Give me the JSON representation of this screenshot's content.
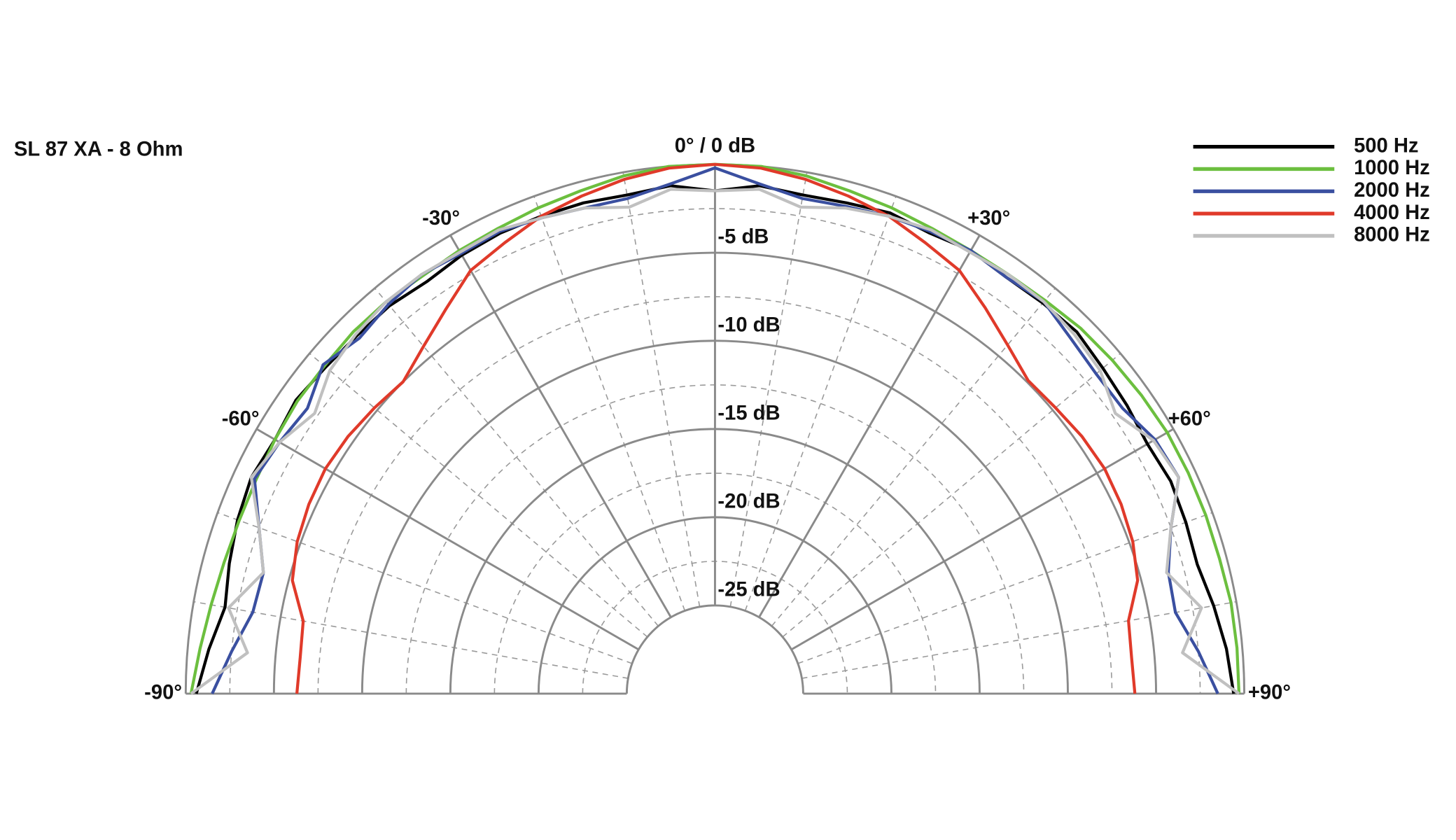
{
  "chart_data": {
    "type": "polar",
    "title": "SL 87 XA - 8 Ohm",
    "theta": [
      -90,
      -85,
      -80,
      -75,
      -70,
      -65,
      -60,
      -55,
      -50,
      -45,
      -40,
      -35,
      -30,
      -25,
      -20,
      -15,
      -10,
      -5,
      0,
      5,
      10,
      15,
      20,
      25,
      30,
      35,
      40,
      45,
      50,
      55,
      60,
      65,
      70,
      75,
      80,
      85,
      90
    ],
    "thetalim": [
      -90,
      90
    ],
    "thetaticks": [
      {
        "value": -90,
        "label": "-90°"
      },
      {
        "value": -60,
        "label": "-60°"
      },
      {
        "value": -30,
        "label": "-30°"
      },
      {
        "value": 0,
        "label": "0° / 0 dB"
      },
      {
        "value": 30,
        "label": "+30°"
      },
      {
        "value": 60,
        "label": "+60°"
      },
      {
        "value": 90,
        "label": "+90°"
      }
    ],
    "thetaminor": [
      -80,
      -70,
      -50,
      -40,
      -20,
      -10,
      10,
      20,
      40,
      50,
      70,
      80
    ],
    "rlim": [
      -30,
      0
    ],
    "rticks": [
      {
        "value": -5,
        "label": "-5 dB"
      },
      {
        "value": -10,
        "label": "-10 dB"
      },
      {
        "value": -15,
        "label": "-15 dB"
      },
      {
        "value": -20,
        "label": "-20 dB"
      },
      {
        "value": -25,
        "label": "-25 dB"
      }
    ],
    "rminor": [
      -2.5,
      -7.5,
      -12.5,
      -17.5,
      -22.5
    ],
    "legend": "top-right",
    "series": [
      {
        "name": "500 Hz",
        "color": "#000000",
        "values": [
          -0.6,
          -1.2,
          -1.8,
          -1.5,
          -1.2,
          -1.0,
          -1.2,
          -1.0,
          -1.2,
          -1.3,
          -1.3,
          -1.5,
          -1.3,
          -1.2,
          -1.2,
          -1.2,
          -1.3,
          -1.1,
          -1.5,
          -1.1,
          -1.3,
          -1.2,
          -1.0,
          -1.2,
          -1.0,
          -1.2,
          -1.1,
          -1.0,
          -1.3,
          -1.5,
          -1.7,
          -1.5,
          -1.6,
          -1.7,
          -1.3,
          -0.9,
          -0.6
        ]
      },
      {
        "name": "1000 Hz",
        "color": "#6cbf3f",
        "values": [
          -0.3,
          -0.7,
          -1.0,
          -1.2,
          -1.3,
          -1.3,
          -1.2,
          -1.1,
          -1.1,
          -1.0,
          -1.0,
          -1.1,
          -1.0,
          -0.9,
          -0.7,
          -0.5,
          -0.2,
          0,
          0,
          0,
          -0.2,
          -0.5,
          -0.7,
          -0.9,
          -1.0,
          -1.0,
          -0.9,
          -0.7,
          -0.6,
          -0.5,
          -0.4,
          -0.4,
          -0.4,
          -0.4,
          -0.3,
          -0.3,
          -0.3
        ]
      },
      {
        "name": "2000 Hz",
        "color": "#3a4fa0",
        "values": [
          -1.5,
          -2.5,
          -3.4,
          -3.5,
          -2.5,
          -1.2,
          -1.5,
          -1.8,
          -1.0,
          -1.5,
          -1.2,
          -1.0,
          -1.2,
          -1.1,
          -1.3,
          -1.5,
          -1.5,
          -1.0,
          -0.2,
          -1.0,
          -1.5,
          -1.4,
          -1.2,
          -1.1,
          -1.0,
          -1.2,
          -1.0,
          -1.5,
          -1.8,
          -1.8,
          -1.2,
          -1.0,
          -2.5,
          -3.4,
          -3.5,
          -2.5,
          -1.5
        ]
      },
      {
        "name": "4000 Hz",
        "color": "#e03a2a",
        "values": [
          -6.3,
          -6.4,
          -6.3,
          -5.2,
          -4.8,
          -4.6,
          -4.5,
          -4.6,
          -4.8,
          -5.0,
          -4.3,
          -3.4,
          -2.3,
          -1.8,
          -1.2,
          -0.8,
          -0.4,
          -0.1,
          0,
          -0.1,
          -0.4,
          -0.8,
          -1.2,
          -1.8,
          -2.3,
          -3.3,
          -4.2,
          -4.9,
          -4.8,
          -4.6,
          -4.5,
          -4.6,
          -4.8,
          -5.2,
          -6.2,
          -6.3,
          -6.2
        ]
      },
      {
        "name": "8000 Hz",
        "color": "#c0c0c0",
        "values": [
          -0.3,
          -3.4,
          -2.0,
          -3.5,
          -2.5,
          -1.0,
          -1.5,
          -2.3,
          -1.5,
          -1.2,
          -1.0,
          -1.0,
          -1.1,
          -1.0,
          -1.3,
          -1.5,
          -2.0,
          -1.3,
          -1.5,
          -1.3,
          -2.0,
          -1.5,
          -1.2,
          -1.0,
          -1.1,
          -1.0,
          -1.0,
          -1.2,
          -1.5,
          -2.3,
          -1.3,
          -1.0,
          -2.5,
          -3.5,
          -2.0,
          -3.4,
          -0.3
        ]
      }
    ]
  }
}
